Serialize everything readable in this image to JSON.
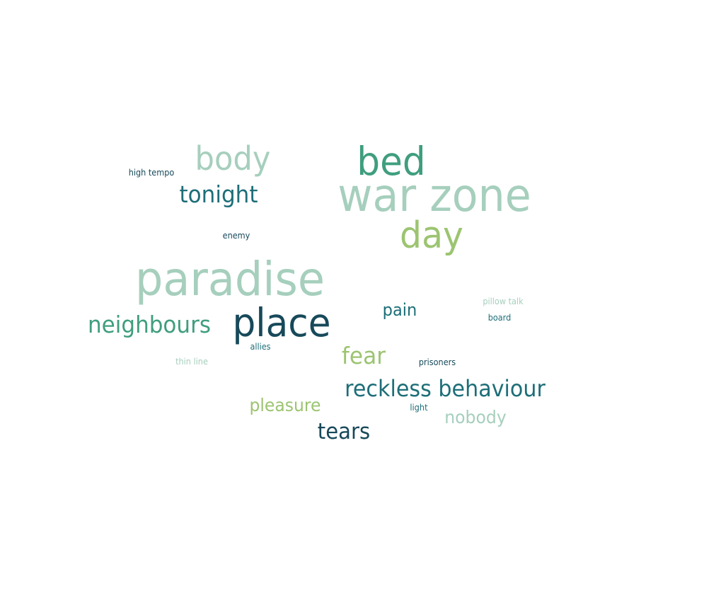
{
  "chart_data": {
    "type": "wordcloud",
    "colors": {
      "light_sage": "#a6cfbd",
      "jade": "#3f9e7e",
      "lime": "#9cc471",
      "teal": "#1d6e78",
      "deep_teal": "#17495a"
    },
    "words": [
      {
        "text": "war zone",
        "weight": 100,
        "color": "#a6cfbd"
      },
      {
        "text": "paradise",
        "weight": 100,
        "color": "#a6cfbd"
      },
      {
        "text": "place",
        "weight": 80,
        "color": "#17495a"
      },
      {
        "text": "bed",
        "weight": 75,
        "color": "#3f9e7e"
      },
      {
        "text": "day",
        "weight": 75,
        "color": "#9cc471"
      },
      {
        "text": "body",
        "weight": 65,
        "color": "#a6cfbd"
      },
      {
        "text": "tonight",
        "weight": 50,
        "color": "#1d6e78"
      },
      {
        "text": "neighbours",
        "weight": 50,
        "color": "#3f9e7e"
      },
      {
        "text": "reckless behaviour",
        "weight": 50,
        "color": "#1d6e78"
      },
      {
        "text": "fear",
        "weight": 45,
        "color": "#9cc471"
      },
      {
        "text": "tears",
        "weight": 45,
        "color": "#17495a"
      },
      {
        "text": "pain",
        "weight": 40,
        "color": "#1d6e78"
      },
      {
        "text": "pleasure",
        "weight": 40,
        "color": "#9cc471"
      },
      {
        "text": "nobody",
        "weight": 40,
        "color": "#a6cfbd"
      },
      {
        "text": "high tempo",
        "weight": 10,
        "color": "#17495a"
      },
      {
        "text": "enemy",
        "weight": 10,
        "color": "#17495a"
      },
      {
        "text": "pillow talk",
        "weight": 10,
        "color": "#a6cfbd"
      },
      {
        "text": "board",
        "weight": 10,
        "color": "#1d6e78"
      },
      {
        "text": "allies",
        "weight": 10,
        "color": "#1d6e78"
      },
      {
        "text": "thin line",
        "weight": 10,
        "color": "#a6cfbd"
      },
      {
        "text": "prisoners",
        "weight": 10,
        "color": "#17495a"
      },
      {
        "text": "light",
        "weight": 10,
        "color": "#1d6e78"
      }
    ]
  }
}
